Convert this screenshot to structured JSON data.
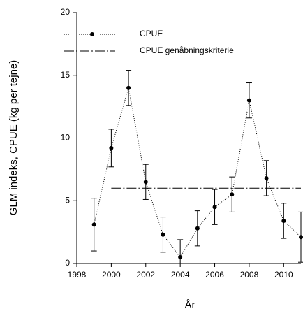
{
  "chart_data": {
    "type": "line",
    "xlabel": "År",
    "ylabel": "GLM indeks, CPUE (kg per tejne)",
    "xlim": [
      1998,
      2011
    ],
    "ylim": [
      0,
      20
    ],
    "xticks": [
      1998,
      2000,
      2002,
      2004,
      2006,
      2008,
      2010
    ],
    "yticks": [
      0,
      5,
      10,
      15,
      20
    ],
    "legend": "upper left",
    "series": [
      {
        "name": "CPUE",
        "color": "#000000",
        "style": "dotted",
        "marker": true,
        "x": [
          1999,
          2000,
          2001,
          2002,
          2003,
          2004,
          2005,
          2006,
          2007,
          2008,
          2009,
          2010,
          2011
        ],
        "values": [
          3.1,
          9.2,
          14.0,
          6.5,
          2.3,
          0.5,
          2.8,
          4.5,
          5.5,
          13.0,
          6.8,
          3.4,
          2.1
        ],
        "errors": [
          2.1,
          1.5,
          1.4,
          1.4,
          1.4,
          1.4,
          1.4,
          1.4,
          1.4,
          1.4,
          1.4,
          1.4,
          2.0
        ]
      },
      {
        "name": "CPUE genåbningskriterie",
        "color": "#000000",
        "style": "dashdot",
        "marker": false,
        "x": [
          2000,
          2011
        ],
        "values": [
          6,
          6
        ]
      }
    ]
  }
}
